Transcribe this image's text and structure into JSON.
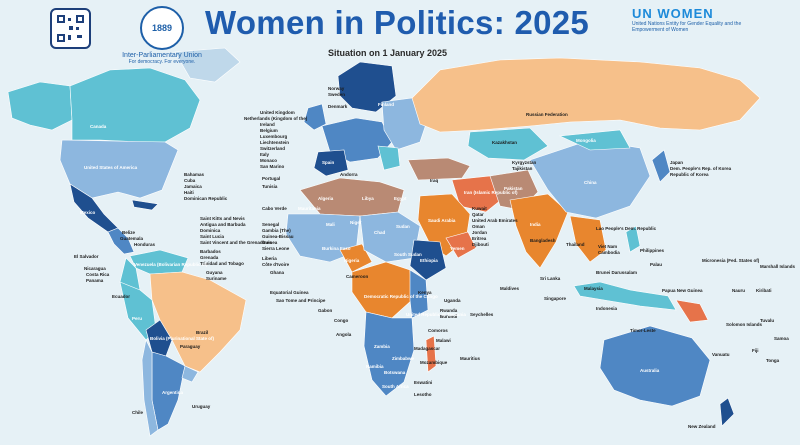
{
  "header": {
    "title": "Women in Politics: 2025",
    "subtitle": "Situation on 1 January 2025",
    "ipu_name": "Inter-Parliamentary Union",
    "ipu_tagline": "For democracy. For everyone.",
    "ipu_year": "1889",
    "unwomen_mark": "UN WOMEN",
    "unwomen_text": "United Nations Entity for Gender Equality and the Empowerment of Women"
  },
  "colors": {
    "ocean": "#e6f1f6",
    "category_1": "#1f4f8f",
    "category_2": "#4f87c4",
    "category_3": "#8db7df",
    "category_4": "#f6c08a",
    "category_5": "#e8862e",
    "category_6": "#b98a74",
    "category_7": "#8a6b5c",
    "category_8": "#5fc1d3",
    "category_9": "#9fa7ad",
    "category_10": "#e6734a"
  },
  "labels": {
    "canada": "Canada",
    "usa": "United States of America",
    "mexico": "Mexico",
    "brazil": "Brazil",
    "peru": "Peru",
    "bolivia": "Bolivia (Plurinational State of)",
    "paraguay": "Paraguay",
    "argentina": "Argentina",
    "chile": "Chile",
    "uruguay": "Uruguay",
    "venezuela": "Venezuela (Bolivarian Republic of)",
    "guyana": "Guyana",
    "suriname": "Suriname",
    "ecuador": "Ecuador",
    "el_salvador": "El Salvador",
    "nicaragua": "Nicaragua",
    "costa_rica": "Costa Rica",
    "panama": "Panama",
    "belize": "Belize",
    "guatemala": "Guatemala",
    "honduras": "Honduras",
    "bahamas": "Bahamas",
    "cuba": "Cuba",
    "jamaica": "Jamaica",
    "haiti": "Haiti",
    "dominican_republic": "Dominican Republic",
    "saint_kitts": "Saint Kitts and Nevis",
    "antigua": "Antigua and Barbuda",
    "dominica": "Dominica",
    "saint_lucia": "Saint Lucia",
    "saint_vincent": "Saint Vincent and the Grenadines",
    "barbados": "Barbados",
    "grenada": "Grenada",
    "trinidad": "Trinidad and Tobago",
    "norway": "Norway",
    "sweden": "Sweden",
    "finland": "Finland",
    "denmark": "Denmark",
    "united_kingdom": "United Kingdom",
    "netherlands": "Netherlands (Kingdom of the)",
    "ireland": "Ireland",
    "belgium": "Belgium",
    "luxembourg": "Luxembourg",
    "liechtenstein": "Liechtenstein",
    "switzerland": "Switzerland",
    "italy": "Italy",
    "monaco": "Monaco",
    "san_marino": "San Marino",
    "portugal": "Portugal",
    "tunisia": "Tunisia",
    "spain": "Spain",
    "andorra": "Andorra",
    "russian_federation": "Russian Federation",
    "kazakhstan": "Kazakhstan",
    "kyrgyzstan": "Kyrgyzstan",
    "tajikistan": "Tajikistan",
    "china": "China",
    "mongolia": "Mongolia",
    "japan": "Japan",
    "dprk": "Dem. People's Rep. of Korea",
    "rok": "Republic of Korea",
    "india": "India",
    "pakistan": "Pakistan",
    "iran": "Iran (Islamic Republic of)",
    "iraq": "Iraq",
    "saudi_arabia": "Saudi Arabia",
    "kuwait": "Kuwait",
    "qatar": "Qatar",
    "uae": "United Arab Emirates",
    "oman": "Oman",
    "yemen": "Yemen",
    "jordan": "Jordan",
    "eritrea": "Eritrea",
    "djibouti": "Djibouti",
    "bangladesh": "Bangladesh",
    "thailand": "Thailand",
    "lao": "Lao People's Dem. Republic",
    "viet_nam": "Viet Nam",
    "cambodia": "Cambodia",
    "philippines": "Philippines",
    "palau": "Palau",
    "micronesia": "Micronesia (Fed. States of)",
    "marshall_islands": "Marshall Islands",
    "nauru": "Nauru",
    "kiribati": "Kiribati",
    "tuvalu": "Tuvalu",
    "samoa": "Samoa",
    "tonga": "Tonga",
    "fiji": "Fiji",
    "vanuatu": "Vanuatu",
    "solomon_islands": "Solomon Islands",
    "papua_new_guinea": "Papua New Guinea",
    "indonesia": "Indonesia",
    "malaysia": "Malaysia",
    "singapore": "Singapore",
    "timor_leste": "Timor-Leste",
    "brunei": "Brunei Darussalam",
    "maldives": "Maldives",
    "sri_lanka": "Sri Lanka",
    "australia": "Australia",
    "new_zealand": "New Zealand",
    "algeria": "Algeria",
    "libya": "Libya",
    "egypt": "Egypt",
    "sudan": "Sudan",
    "south_sudan": "South Sudan",
    "ethiopia": "Ethiopia",
    "kenya": "Kenya",
    "uganda": "Uganda",
    "rwanda": "Rwanda",
    "burundi": "Burundi",
    "tanzania": "United Republic of Tanzania",
    "drc": "Democratic Republic of the Congo",
    "congo": "Congo",
    "gabon": "Gabon",
    "equatorial_guinea": "Equatorial Guinea",
    "sao_tome": "Sao Tome and Principe",
    "angola": "Angola",
    "zambia": "Zambia",
    "zimbabwe": "Zimbabwe",
    "namibia": "Namibia",
    "botswana": "Botswana",
    "south_africa": "South Africa",
    "mozambique": "Mozambique",
    "madagascar": "Madagascar",
    "eswatini": "Eswatini",
    "lesotho": "Lesotho",
    "malawi": "Malawi",
    "comoros": "Comoros",
    "mauritius": "Mauritius",
    "seychelles": "Seychelles",
    "mali": "Mali",
    "niger": "Niger",
    "chad": "Chad",
    "mauritania": "Mauritania",
    "cabo_verde": "Cabo Verde",
    "senegal": "Senegal",
    "gambia": "Gambia (The)",
    "guinea_bissau": "Guinea-Bissau",
    "guinea": "Guinea",
    "sierra_leone": "Sierra Leone",
    "liberia": "Liberia",
    "cote_divoire": "Côte d'Ivoire",
    "ghana": "Ghana",
    "burkina_faso": "Burkina Faso",
    "nigeria": "Nigeria",
    "cameroon": "Cameroon"
  }
}
